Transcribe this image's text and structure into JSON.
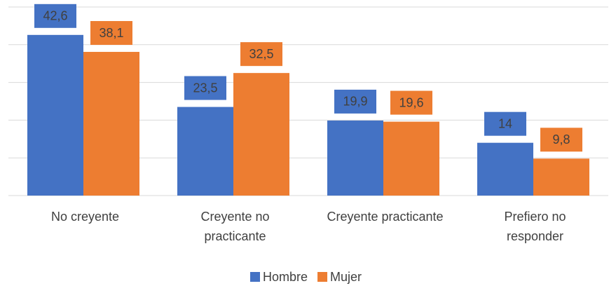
{
  "chart_data": {
    "type": "bar",
    "categories": [
      "No creyente",
      "Creyente no\npracticante",
      "Creyente practicante",
      "Prefiero no\nresponder"
    ],
    "series": [
      {
        "name": "Hombre",
        "color": "#4472c4",
        "values": [
          42.6,
          23.5,
          19.9,
          14
        ],
        "value_labels": [
          "42,6",
          "23,5",
          "19,9",
          "14"
        ]
      },
      {
        "name": "Mujer",
        "color": "#ed7d31",
        "values": [
          38.1,
          32.5,
          19.6,
          9.8
        ],
        "value_labels": [
          "38,1",
          "32,5",
          "19,6",
          "9,8"
        ]
      }
    ],
    "ylim": [
      0,
      50
    ],
    "yticks": [
      0,
      10,
      20,
      30,
      40,
      50
    ],
    "grid": true
  }
}
